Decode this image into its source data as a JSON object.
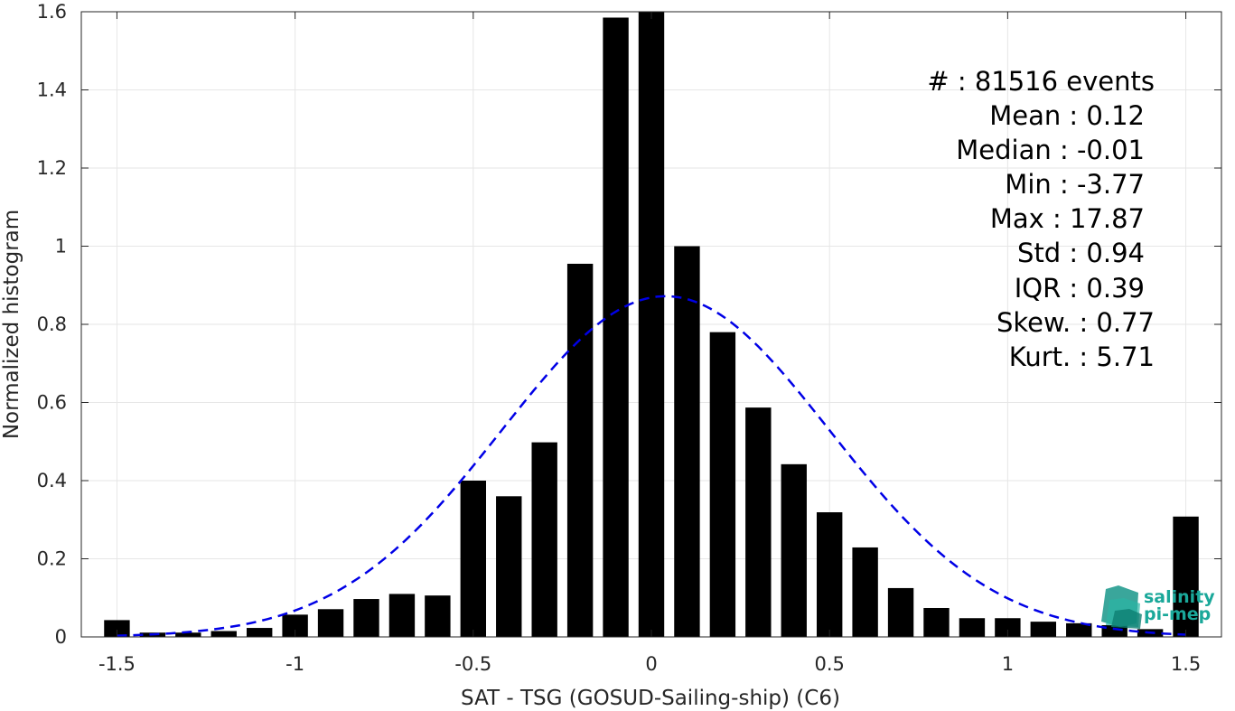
{
  "chart_data": {
    "type": "bar",
    "xlabel": "SAT - TSG (GOSUD-Sailing-ship) (C6)",
    "ylabel": "Normalized histogram",
    "xlim": [
      -1.6,
      1.6
    ],
    "ylim": [
      0,
      1.6
    ],
    "grid": true,
    "x_ticks": [
      -1.5,
      -1,
      -0.5,
      0,
      0.5,
      1,
      1.5
    ],
    "x_tick_labels": [
      "-1.5",
      "-1",
      "-0.5",
      "0",
      "0.5",
      "1",
      "1.5"
    ],
    "y_ticks": [
      0,
      0.2,
      0.4,
      0.6,
      0.8,
      1,
      1.2,
      1.4,
      1.6
    ],
    "y_tick_labels": [
      "0",
      "0.2",
      "0.4",
      "0.6",
      "0.8",
      "1",
      "1.2",
      "1.4",
      "1.6"
    ],
    "bar_color": "#000000",
    "bins": [
      {
        "x": -1.5,
        "value": 0.043
      },
      {
        "x": -1.4,
        "value": 0.011
      },
      {
        "x": -1.3,
        "value": 0.011
      },
      {
        "x": -1.2,
        "value": 0.015
      },
      {
        "x": -1.1,
        "value": 0.023
      },
      {
        "x": -1.0,
        "value": 0.057
      },
      {
        "x": -0.9,
        "value": 0.071
      },
      {
        "x": -0.8,
        "value": 0.097
      },
      {
        "x": -0.7,
        "value": 0.11
      },
      {
        "x": -0.6,
        "value": 0.106
      },
      {
        "x": -0.5,
        "value": 0.4
      },
      {
        "x": -0.4,
        "value": 0.36
      },
      {
        "x": -0.3,
        "value": 0.498
      },
      {
        "x": -0.2,
        "value": 0.955
      },
      {
        "x": -0.1,
        "value": 1.585
      },
      {
        "x": 0.0,
        "value": 1.6
      },
      {
        "x": 0.1,
        "value": 1.0
      },
      {
        "x": 0.2,
        "value": 0.78
      },
      {
        "x": 0.3,
        "value": 0.587
      },
      {
        "x": 0.4,
        "value": 0.442
      },
      {
        "x": 0.5,
        "value": 0.319
      },
      {
        "x": 0.6,
        "value": 0.229
      },
      {
        "x": 0.7,
        "value": 0.125
      },
      {
        "x": 0.8,
        "value": 0.074
      },
      {
        "x": 0.9,
        "value": 0.048
      },
      {
        "x": 1.0,
        "value": 0.048
      },
      {
        "x": 1.1,
        "value": 0.039
      },
      {
        "x": 1.2,
        "value": 0.035
      },
      {
        "x": 1.3,
        "value": 0.03
      },
      {
        "x": 1.4,
        "value": 0.02
      },
      {
        "x": 1.5,
        "value": 0.308
      }
    ],
    "fit_curve": {
      "type": "gaussian",
      "style": "dashed",
      "color": "#0000e6",
      "mean": 0.04,
      "std": 0.46,
      "peak": 0.872,
      "x_range": [
        -1.5,
        1.5
      ]
    }
  },
  "stats": {
    "lines": [
      "#  : 81516 events",
      "Mean : 0.12",
      "Median : -0.01",
      "Min : -3.77",
      "Max : 17.87",
      "Std : 0.94",
      "IQR : 0.39",
      "Skew. : 0.77",
      "Kurt. : 5.71"
    ]
  },
  "logo": {
    "line1": "salinity",
    "line2": "pi-mep",
    "color": "#1aa89a"
  }
}
